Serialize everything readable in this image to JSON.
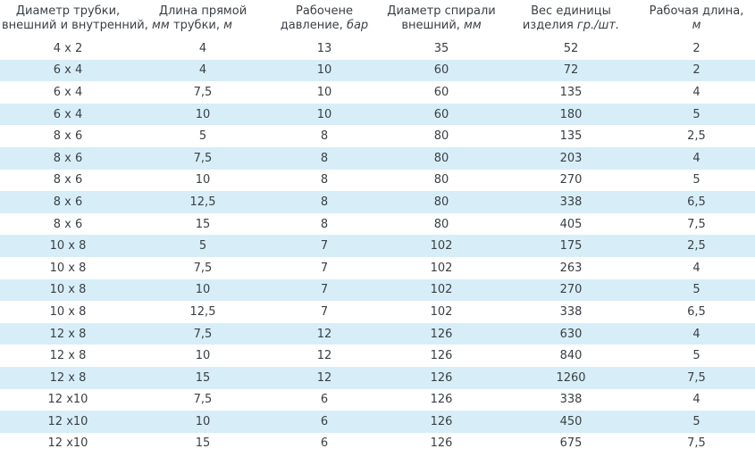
{
  "headers": [
    {
      "line1": "Диаметр трубки,",
      "line2_plain": "внешний и внутренний, ",
      "line2_unit": "мм"
    },
    {
      "line1": "Длина прямой",
      "line2_plain": "трубки, ",
      "line2_unit": "м"
    },
    {
      "line1": "Рабочене",
      "line2_plain": "давление, ",
      "line2_unit": "бар"
    },
    {
      "line1": "Диаметр спирали",
      "line2_plain": "внешний, ",
      "line2_unit": "мм"
    },
    {
      "line1": "Вес единицы",
      "line2_plain": "изделия ",
      "line2_unit": "гр./шт."
    },
    {
      "line1": "Рабочая длина,",
      "line2_plain": "",
      "line2_unit": "м"
    }
  ],
  "rows": [
    [
      "4 x 2",
      "4",
      "13",
      "35",
      "52",
      "2"
    ],
    [
      "6 x 4",
      "4",
      "10",
      "60",
      "72",
      "2"
    ],
    [
      "6 x 4",
      "7,5",
      "10",
      "60",
      "135",
      "4"
    ],
    [
      "6 x 4",
      "10",
      "10",
      "60",
      "180",
      "5"
    ],
    [
      "8 x 6",
      "5",
      "8",
      "80",
      "135",
      "2,5"
    ],
    [
      "8 x 6",
      "7,5",
      "8",
      "80",
      "203",
      "4"
    ],
    [
      "8 x 6",
      "10",
      "8",
      "80",
      "270",
      "5"
    ],
    [
      "8 x 6",
      "12,5",
      "8",
      "80",
      "338",
      "6,5"
    ],
    [
      "8 x 6",
      "15",
      "8",
      "80",
      "405",
      "7,5"
    ],
    [
      "10 x 8",
      "5",
      "7",
      "102",
      "175",
      "2,5"
    ],
    [
      "10 x 8",
      "7,5",
      "7",
      "102",
      "263",
      "4"
    ],
    [
      "10 x 8",
      "10",
      "7",
      "102",
      "270",
      "5"
    ],
    [
      "10 x 8",
      "12,5",
      "7",
      "102",
      "338",
      "6,5"
    ],
    [
      "12 x 8",
      "7,5",
      "12",
      "126",
      "630",
      "4"
    ],
    [
      "12 x 8",
      "10",
      "12",
      "126",
      "840",
      "5"
    ],
    [
      "12 x 8",
      "15",
      "12",
      "126",
      "1260",
      "7,5"
    ],
    [
      "12 x10",
      "7,5",
      "6",
      "126",
      "338",
      "4"
    ],
    [
      "12 x10",
      "10",
      "6",
      "126",
      "450",
      "5"
    ],
    [
      "12 x10",
      "15",
      "6",
      "126",
      "675",
      "7,5"
    ]
  ],
  "colors": {
    "text": "#3a3f44",
    "stripe": "#d7eef8",
    "background": "#ffffff"
  }
}
